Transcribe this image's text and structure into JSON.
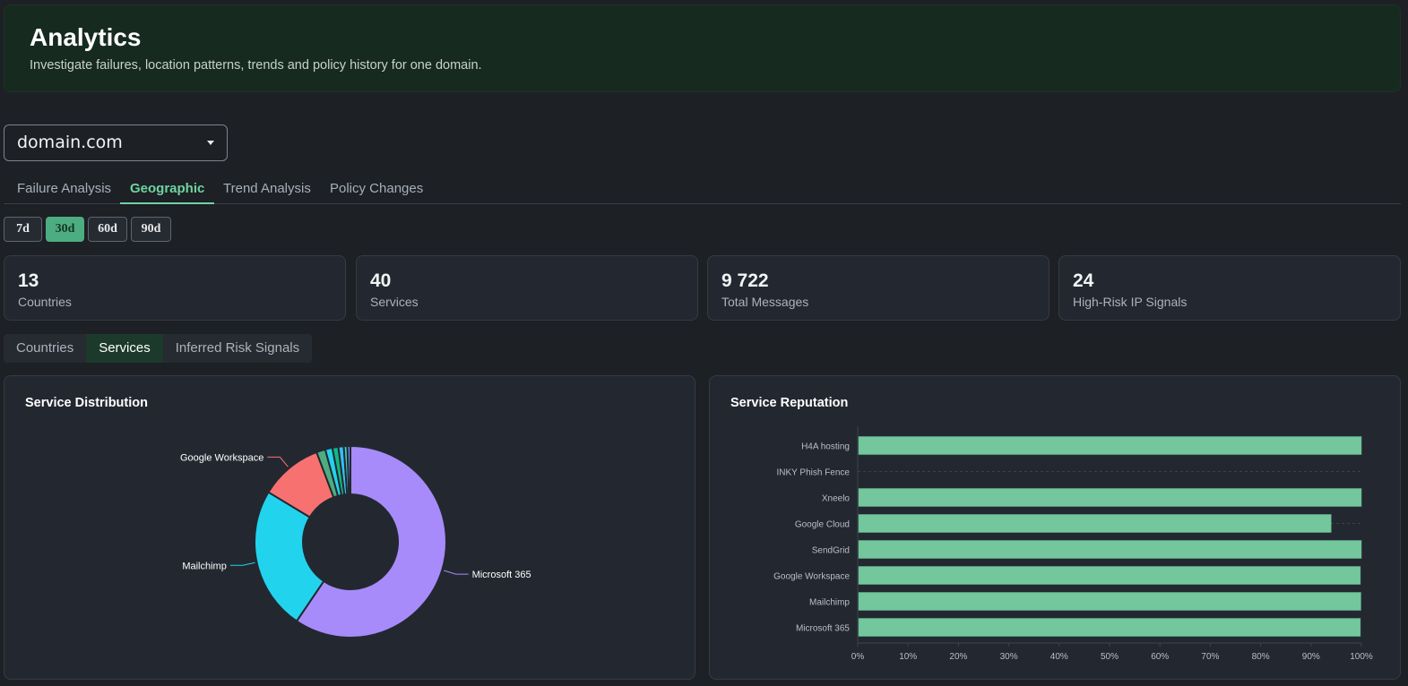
{
  "header": {
    "title": "Analytics",
    "subtitle": "Investigate failures, location patterns, trends and policy history for one domain."
  },
  "domain_select": {
    "value": "domain.com"
  },
  "tabs": [
    {
      "label": "Failure Analysis",
      "active": false
    },
    {
      "label": "Geographic",
      "active": true
    },
    {
      "label": "Trend Analysis",
      "active": false
    },
    {
      "label": "Policy Changes",
      "active": false
    }
  ],
  "ranges": [
    {
      "label": "7d",
      "active": false
    },
    {
      "label": "30d",
      "active": true
    },
    {
      "label": "60d",
      "active": false
    },
    {
      "label": "90d",
      "active": false
    }
  ],
  "stats": [
    {
      "value": "13",
      "label": "Countries"
    },
    {
      "value": "40",
      "label": "Services"
    },
    {
      "value": "9 722",
      "label": "Total Messages"
    },
    {
      "value": "24",
      "label": "High-Risk IP Signals"
    }
  ],
  "subtabs": [
    {
      "label": "Countries",
      "active": false
    },
    {
      "label": "Services",
      "active": true
    },
    {
      "label": "Inferred Risk Signals",
      "active": false
    }
  ],
  "panels": {
    "distribution_title": "Service Distribution",
    "reputation_title": "Service Reputation"
  },
  "colors": {
    "accent": "#6fd3a1",
    "bar": "#74c69d",
    "slice_microsoft": "#a78bfa",
    "slice_mailchimp": "#22d3ee",
    "slice_google": "#f87171"
  },
  "chart_data": [
    {
      "type": "pie",
      "title": "Service Distribution",
      "labels": [
        "Microsoft 365",
        "Mailchimp",
        "Google Workspace",
        "",
        "",
        "",
        "",
        "",
        ""
      ],
      "values": [
        59,
        24,
        10.5,
        1.5,
        1.2,
        1.0,
        0.9,
        0.6,
        0.5
      ],
      "colors": [
        "#a78bfa",
        "#22d3ee",
        "#f87171",
        "#4cae80",
        "#22d3ee",
        "#10b981",
        "#38bdf8",
        "#2dd4bf",
        "#818cf8"
      ]
    },
    {
      "type": "bar",
      "title": "Service Reputation",
      "orientation": "horizontal",
      "categories": [
        "H4A hosting",
        "INKY Phish Fence",
        "Xneelo",
        "Google Cloud",
        "SendGrid",
        "Google Workspace",
        "Mailchimp",
        "Microsoft 365"
      ],
      "values": [
        100,
        0,
        100,
        94,
        100,
        99.8,
        99.9,
        99.8
      ],
      "xlim": [
        0,
        100
      ],
      "xticks": [
        "0%",
        "10%",
        "20%",
        "30%",
        "40%",
        "50%",
        "60%",
        "70%",
        "80%",
        "90%",
        "100%"
      ]
    }
  ]
}
